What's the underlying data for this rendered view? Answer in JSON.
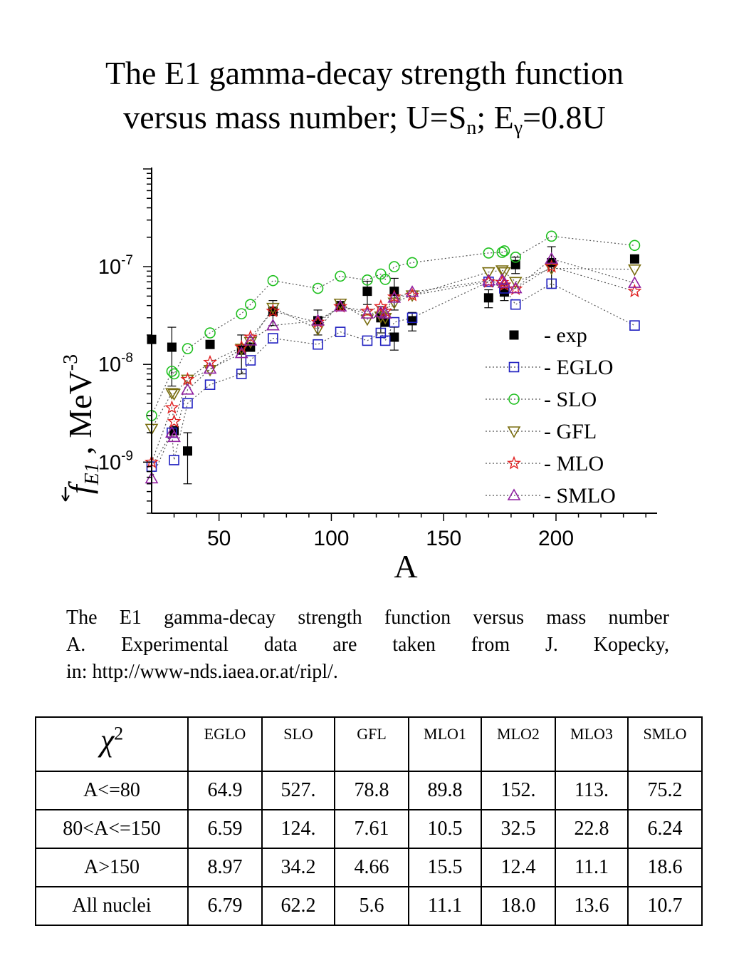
{
  "title": {
    "line1": "The E1 gamma-decay strength function",
    "line2_pre": "versus mass number; U=S",
    "line2_sub1": "n",
    "line2_mid": "; E",
    "line2_sub2": "γ",
    "line2_post": "=0.8U"
  },
  "chart_data": {
    "type": "scatter",
    "xlabel": "A",
    "ylabel": "f E1 , MeV-3",
    "yscale": "log",
    "xlim": [
      20,
      245
    ],
    "ylim": [
      3e-10,
      1e-06
    ],
    "x_ticks": [
      50,
      100,
      150,
      200
    ],
    "y_ticks": [
      {
        "value": 1e-09,
        "label": "10-9"
      },
      {
        "value": 1e-08,
        "label": "10-8"
      },
      {
        "value": 1e-07,
        "label": "10-7"
      }
    ],
    "legend_position": "lower-right",
    "series": [
      {
        "name": "exp",
        "marker": "filled-square",
        "color": "#000000",
        "line": false,
        "points": [
          [
            20,
            1.8e-08
          ],
          [
            29,
            1.5e-08
          ],
          [
            30,
            2.1e-09
          ],
          [
            36,
            1.3e-09
          ],
          [
            46,
            1.6e-08
          ],
          [
            60,
            1.4e-08
          ],
          [
            64,
            1.5e-08
          ],
          [
            74,
            3.5e-08
          ],
          [
            94,
            2.8e-08
          ],
          [
            104,
            4e-08
          ],
          [
            116,
            5.6e-08
          ],
          [
            122,
            3e-08
          ],
          [
            124,
            2.7e-08
          ],
          [
            128,
            5.6e-08
          ],
          [
            128,
            1.9e-08
          ],
          [
            136,
            2.8e-08
          ],
          [
            170,
            4.8e-08
          ],
          [
            177,
            5.5e-08
          ],
          [
            182,
            1.05e-07
          ],
          [
            198,
            1.1e-07
          ],
          [
            235,
            1.2e-07
          ]
        ],
        "errors": [
          [
            20,
            0
          ],
          [
            29,
            9e-09
          ],
          [
            30,
            0
          ],
          [
            36,
            7e-10
          ],
          [
            46,
            0
          ],
          [
            60,
            6e-09
          ],
          [
            64,
            0
          ],
          [
            74,
            1e-08
          ],
          [
            94,
            8e-09
          ],
          [
            104,
            0
          ],
          [
            116,
            1.5e-08
          ],
          [
            122,
            9e-09
          ],
          [
            124,
            0
          ],
          [
            128,
            2e-08
          ],
          [
            128,
            5e-09
          ],
          [
            136,
            6e-09
          ],
          [
            170,
            1e-08
          ],
          [
            177,
            1e-08
          ],
          [
            182,
            2e-08
          ],
          [
            198,
            5e-08
          ],
          [
            235,
            0
          ]
        ]
      },
      {
        "name": "EGLO",
        "marker": "open-square",
        "color": "#2020c0",
        "line": true,
        "points": [
          [
            20,
            9e-10
          ],
          [
            29,
            2e-09
          ],
          [
            30,
            1.05e-09
          ],
          [
            36,
            4e-09
          ],
          [
            46,
            6.2e-09
          ],
          [
            60,
            8e-09
          ],
          [
            64,
            1.1e-08
          ],
          [
            74,
            1.85e-08
          ],
          [
            94,
            1.6e-08
          ],
          [
            104,
            2.15e-08
          ],
          [
            116,
            1.75e-08
          ],
          [
            122,
            2.1e-08
          ],
          [
            124,
            1.75e-08
          ],
          [
            128,
            2.7e-08
          ],
          [
            136,
            3e-08
          ],
          [
            170,
            7e-08
          ],
          [
            177,
            6e-08
          ],
          [
            182,
            4.1e-08
          ],
          [
            198,
            6.7e-08
          ],
          [
            235,
            2.5e-08
          ]
        ]
      },
      {
        "name": "SLO",
        "marker": "open-circle",
        "color": "#20c020",
        "line": true,
        "points": [
          [
            20,
            3e-09
          ],
          [
            29,
            8.5e-09
          ],
          [
            30,
            8e-09
          ],
          [
            36,
            1.45e-08
          ],
          [
            46,
            2.1e-08
          ],
          [
            60,
            3.3e-08
          ],
          [
            64,
            4.1e-08
          ],
          [
            74,
            7.2e-08
          ],
          [
            94,
            6e-08
          ],
          [
            104,
            8e-08
          ],
          [
            116,
            7.3e-08
          ],
          [
            122,
            8.4e-08
          ],
          [
            124,
            7.4e-08
          ],
          [
            128,
            1e-07
          ],
          [
            136,
            1.1e-07
          ],
          [
            170,
            1.38e-07
          ],
          [
            176,
            1.4e-07
          ],
          [
            177,
            1.45e-07
          ],
          [
            182,
            1.25e-07
          ],
          [
            198,
            2.05e-07
          ],
          [
            235,
            1.65e-07
          ]
        ]
      },
      {
        "name": "GFL",
        "marker": "open-triangle-down",
        "color": "#7a6e10",
        "line": true,
        "points": [
          [
            20,
            2.2e-09
          ],
          [
            29,
            5.1e-09
          ],
          [
            30,
            5e-09
          ],
          [
            36,
            7e-09
          ],
          [
            46,
            8.8e-09
          ],
          [
            60,
            1.45e-08
          ],
          [
            64,
            1.7e-08
          ],
          [
            74,
            3.8e-08
          ],
          [
            94,
            2.3e-08
          ],
          [
            104,
            4.2e-08
          ],
          [
            116,
            2.9e-08
          ],
          [
            122,
            3.1e-08
          ],
          [
            124,
            3e-08
          ],
          [
            128,
            4.3e-08
          ],
          [
            136,
            5.1e-08
          ],
          [
            170,
            8.8e-08
          ],
          [
            176,
            9.2e-08
          ],
          [
            177,
            8.8e-08
          ],
          [
            182,
            7e-08
          ],
          [
            198,
            9.6e-08
          ],
          [
            235,
            9.4e-08
          ]
        ]
      },
      {
        "name": "MLO",
        "marker": "open-star",
        "color": "#e02020",
        "line": true,
        "points": [
          [
            20,
            1e-09
          ],
          [
            29,
            3.6e-09
          ],
          [
            30,
            2.6e-09
          ],
          [
            36,
            7e-09
          ],
          [
            46,
            1.05e-08
          ],
          [
            60,
            1.5e-08
          ],
          [
            64,
            1.9e-08
          ],
          [
            74,
            3.5e-08
          ],
          [
            94,
            2.7e-08
          ],
          [
            104,
            3.9e-08
          ],
          [
            116,
            3.5e-08
          ],
          [
            122,
            3.9e-08
          ],
          [
            124,
            3.5e-08
          ],
          [
            128,
            4.9e-08
          ],
          [
            136,
            5.1e-08
          ],
          [
            170,
            7e-08
          ],
          [
            176,
            6.9e-08
          ],
          [
            177,
            6.5e-08
          ],
          [
            182,
            5.9e-08
          ],
          [
            198,
            1e-07
          ],
          [
            235,
            5.6e-08
          ]
        ]
      },
      {
        "name": "SMLO",
        "marker": "open-triangle-up",
        "color": "#9020a0",
        "line": true,
        "points": [
          [
            20,
            6.8e-10
          ],
          [
            29,
            2e-09
          ],
          [
            30,
            1.8e-09
          ],
          [
            36,
            5.5e-09
          ],
          [
            46,
            9e-09
          ],
          [
            60,
            1.3e-08
          ],
          [
            64,
            1.75e-08
          ],
          [
            74,
            2.5e-08
          ],
          [
            94,
            2.8e-08
          ],
          [
            104,
            3.9e-08
          ],
          [
            116,
            3.3e-08
          ],
          [
            122,
            3.4e-08
          ],
          [
            124,
            3.3e-08
          ],
          [
            128,
            4.8e-08
          ],
          [
            136,
            5.5e-08
          ],
          [
            170,
            7.2e-08
          ],
          [
            176,
            7.3e-08
          ],
          [
            177,
            6.8e-08
          ],
          [
            182,
            6e-08
          ],
          [
            198,
            1.2e-07
          ],
          [
            235,
            6.8e-08
          ]
        ]
      }
    ]
  },
  "caption": {
    "line1": "The E1 gamma-decay strength function versus mass number",
    "line2": "A. Experimental data are taken from J. Kopecky,",
    "line3": "in: http://www-nds.iaea.or.at/ripl/."
  },
  "table": {
    "corner_symbol": "χ",
    "corner_sup": "2",
    "columns": [
      "EGLO",
      "SLO",
      "GFL",
      "MLO1",
      "MLO2",
      "MLO3",
      "SMLO"
    ],
    "rows": [
      {
        "label": "A<=80",
        "values": [
          "64.9",
          "527.",
          "78.8",
          "89.8",
          "152.",
          "113.",
          "75.2"
        ]
      },
      {
        "label": "80<A<=150",
        "values": [
          "6.59",
          "124.",
          "7.61",
          "10.5",
          "32.5",
          "22.8",
          "6.24"
        ]
      },
      {
        "label": "A>150",
        "values": [
          "8.97",
          "34.2",
          "4.66",
          "15.5",
          "12.4",
          "11.1",
          "18.6"
        ]
      },
      {
        "label": "All nuclei",
        "values": [
          "6.79",
          "62.2",
          "5.6",
          "11.1",
          "18.0",
          "13.6",
          "10.7"
        ]
      }
    ]
  }
}
